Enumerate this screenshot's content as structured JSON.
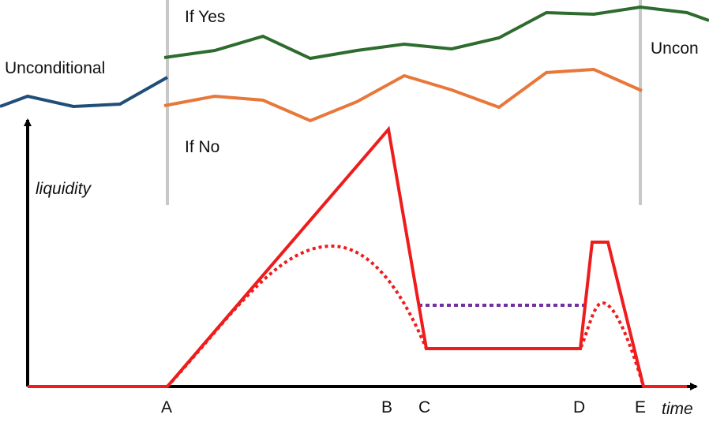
{
  "labels": {
    "unconditional_left": "Unconditional",
    "unconditional_right": "Uncon",
    "if_yes": "If Yes",
    "if_no": "If No",
    "y_axis": "liquidity",
    "x_axis": "time"
  },
  "time_markers": [
    "A",
    "B",
    "C",
    "D",
    "E"
  ],
  "colors": {
    "unconditional_line": "#1f4e79",
    "if_yes_line": "#2e6b2e",
    "if_no_line": "#e8773a",
    "liquidity_solid": "#ee1c1c",
    "liquidity_dotted": "#ee1c1c",
    "plateau_dotted": "#7030a0",
    "divider": "#c8c8c8",
    "axis": "#000000"
  }
}
